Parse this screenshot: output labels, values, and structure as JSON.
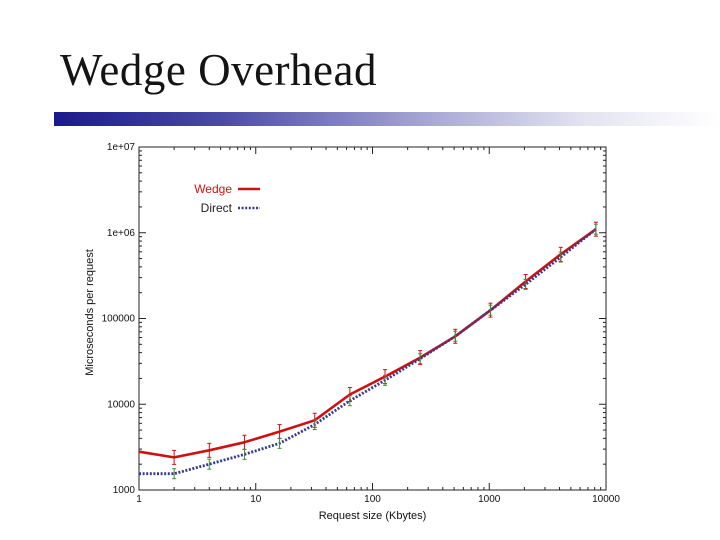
{
  "slide": {
    "title": "Wedge Overhead"
  },
  "colors": {
    "wedge": "#cc1111",
    "direct": "#3a3a8c",
    "accent_bar": "#1a1a8c"
  },
  "chart_data": {
    "type": "line",
    "title": "",
    "xlabel": "Request size (Kbytes)",
    "ylabel": "Microseconds per request",
    "xscale": "log",
    "yscale": "log",
    "xlim": [
      1,
      10000
    ],
    "ylim": [
      1000,
      10000000
    ],
    "x_tick_labels": [
      "1",
      "10",
      "100",
      "1000",
      "10000"
    ],
    "y_tick_labels": [
      "1000",
      "10000",
      "100000",
      "1e+06",
      "1e+07"
    ],
    "grid": false,
    "legend": "top-left",
    "series": [
      {
        "name": "Wedge",
        "style": "solid",
        "x": [
          1,
          2,
          4,
          8,
          16,
          32,
          64,
          128,
          256,
          512,
          1024,
          2048,
          4096,
          8192
        ],
        "y": [
          2800,
          2400,
          2900,
          3600,
          4800,
          6500,
          13000,
          21000,
          35000,
          62000,
          125000,
          270000,
          560000,
          1100000
        ]
      },
      {
        "name": "Direct",
        "style": "dotted",
        "x": [
          1,
          2,
          4,
          8,
          16,
          32,
          64,
          128,
          256,
          512,
          1024,
          2048,
          4096,
          8192
        ],
        "y": [
          1550,
          1550,
          2000,
          2600,
          3500,
          5800,
          11000,
          19000,
          34000,
          62000,
          125000,
          250000,
          520000,
          1100000
        ]
      }
    ]
  }
}
